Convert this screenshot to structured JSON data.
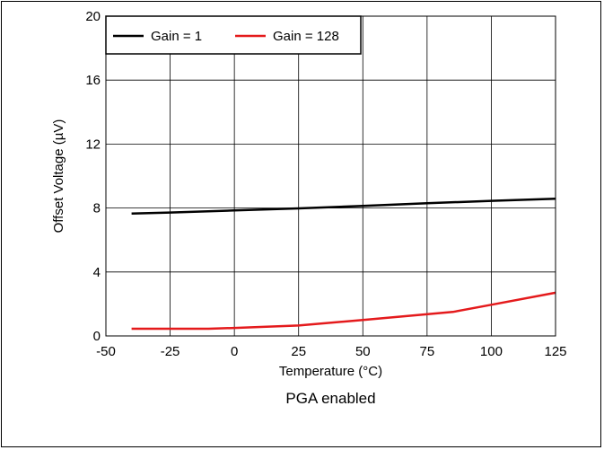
{
  "chart_data": {
    "type": "line",
    "xlabel": "Temperature (°C)",
    "ylabel": "Offset Voltage (µV)",
    "caption": "PGA enabled",
    "xlim": [
      -50,
      125
    ],
    "ylim": [
      0,
      20
    ],
    "xticks": [
      -50,
      -25,
      0,
      25,
      50,
      75,
      100,
      125
    ],
    "yticks": [
      0,
      4,
      8,
      12,
      16,
      20
    ],
    "grid": true,
    "legend_position": "top-left",
    "series": [
      {
        "name": "Gain = 1",
        "color": "#000000",
        "x": [
          -40,
          -25,
          0,
          25,
          50,
          75,
          100,
          125
        ],
        "y": [
          7.65,
          7.72,
          7.85,
          7.98,
          8.13,
          8.3,
          8.45,
          8.58
        ]
      },
      {
        "name": "Gain = 128",
        "color": "#e41a1c",
        "x": [
          -40,
          -25,
          -10,
          0,
          25,
          50,
          85,
          100,
          125
        ],
        "y": [
          0.45,
          0.45,
          0.45,
          0.5,
          0.65,
          1.0,
          1.5,
          1.95,
          2.7
        ]
      }
    ]
  }
}
